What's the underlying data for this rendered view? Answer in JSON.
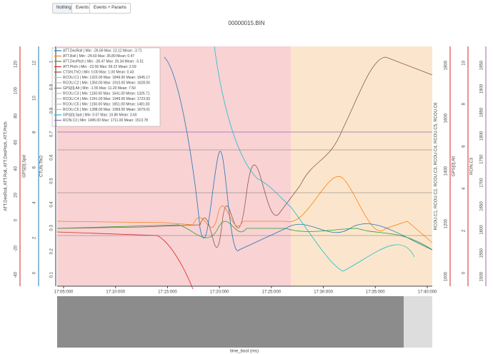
{
  "toolbar": {
    "buttons": [
      "Nothing",
      "Events",
      "Events + Params"
    ]
  },
  "title": "00000015.BIN",
  "x_axis": {
    "label": "time_boot (ms)",
    "ticks": [
      "17:05:000",
      "17:10:000",
      "17:15:000",
      "17:20:000",
      "17:25:000",
      "17:30:000",
      "17:35:000",
      "17:40:000"
    ]
  },
  "left_axes": [
    {
      "label": "ATT.DesRoll, ATT.Roll, ATT.DesPitch, ATT.Pitch",
      "color": "#d62728",
      "ticks": [
        "120",
        "100",
        "80",
        "60",
        "40",
        "20",
        "0",
        "-20",
        "-40"
      ]
    },
    {
      "label": "GPS[0].Spd",
      "color": "#1f77b4",
      "ticks": [
        "12",
        "10",
        "8",
        "6",
        "4",
        "2",
        "0"
      ]
    },
    {
      "label": "CTUN.ThO",
      "color": "#333333",
      "ticks": [
        "1",
        "0.9",
        "0.8",
        "0.7",
        "0.6",
        "0.5",
        "0.4",
        "0.3",
        "0.2",
        "0.1"
      ]
    }
  ],
  "right_axes": [
    {
      "label": "RCOU.C1, RCOU.C2, RCOU.C3, RCOU.C4, RCOU.C5, RCOU.C6",
      "color": "#d62728",
      "ticks": [
        "1800",
        "1600",
        "1400",
        "1200",
        "1000"
      ]
    },
    {
      "label": "GPS[0].Alt",
      "color": "#d62728",
      "ticks": [
        "10",
        "8",
        "6",
        "4",
        "2",
        "0"
      ]
    },
    {
      "label": "RCIN.C3",
      "color": "#9467bd",
      "ticks": [
        "1950",
        "1900",
        "1850",
        "1800",
        "1750",
        "1700",
        "1650",
        "1600",
        "1550",
        "1500"
      ]
    }
  ],
  "legend": [
    {
      "text": "ATT.DesRoll | Min: -26.69    Max: 13.12    Mean: -3.71",
      "color": "#1f77b4"
    },
    {
      "text": "ATT.Roll | Min: -24.60    Max: 35.89    Mean: 0.47",
      "color": "#ff7f0e"
    },
    {
      "text": "ATT.DesPitch | Min: -28.47    Max: 26.34    Mean: -5.51",
      "color": "#2ca02c"
    },
    {
      "text": "ATT.Pitch | Min: -22.06    Max: 59.22    Mean: 2.59",
      "color": "#d62728"
    },
    {
      "text": "CTUN.ThO | Min: 0.00    Max: 1.00    Mean: 0.43",
      "color": "#8c564b"
    },
    {
      "text": "RCOU.C1 | Min: 1322.00    Max: 1849.00    Mean: 1645.17",
      "color": "#bbbbbb"
    },
    {
      "text": "RCOU.C2 | Min: 1350.00    Max: 1910.00    Mean: 1628.00",
      "color": "#bbbbbb"
    },
    {
      "text": "GPS[0].Alt | Min: -1.55    Max: 11.20    Mean: 7.50",
      "color": "#7f7f7f"
    },
    {
      "text": "RCOU.C3 | Min: 1150.00    Max: 1641.00    Mean: 1326.71",
      "color": "#bbbbbb"
    },
    {
      "text": "RCOU.C4 | Min: 1241.00    Max: 1949.00    Mean: 1723.93",
      "color": "#bbbbbb"
    },
    {
      "text": "RCOU.C5 | Min: 1150.00    Max: 1651.00    Mean: 1481.83",
      "color": "#bbbbbb"
    },
    {
      "text": "RCOU.C6 | Min: 1288.00    Max: 1999.00    Mean: 1679.01",
      "color": "#bbbbbb"
    },
    {
      "text": "GPS[0].Spd | Min: 0.07    Max: 10.86    Mean: 3.60",
      "color": "#17becf"
    },
    {
      "text": "RCIN.C3 | Min: 1495.00    Max: 1711.00    Mean: 1513.78",
      "color": "#9467bd"
    }
  ]
}
